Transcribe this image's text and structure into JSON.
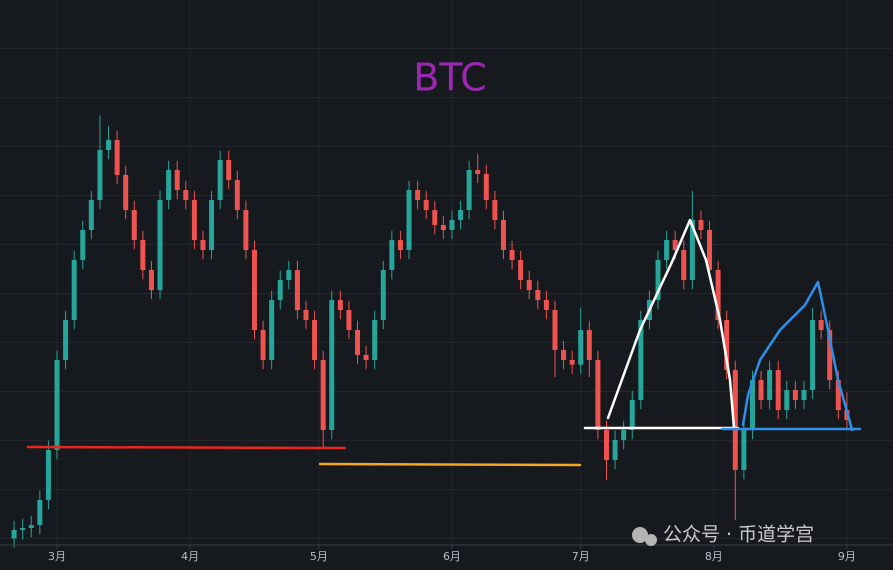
{
  "chart_data": {
    "type": "candlestick",
    "title": "BTC",
    "title_color": "#9c27b0",
    "watermark": "公众号 · 币道学宫",
    "up_color": "#26a69a",
    "down_color": "#ef5350",
    "grid": true,
    "xlim": [
      -13.28,
      194.74
    ],
    "ylim": [
      45575,
      81000
    ],
    "xticks": [
      {
        "value": 0,
        "label": "3月"
      },
      {
        "value": 31,
        "label": "4月"
      },
      {
        "value": 61,
        "label": "5月"
      },
      {
        "value": 92,
        "label": "6月"
      },
      {
        "value": 122,
        "label": "7月"
      },
      {
        "value": 153,
        "label": "8月"
      },
      {
        "value": 184,
        "label": "9月"
      }
    ],
    "x": [
      -10,
      -8,
      -6,
      -4,
      -2,
      0,
      2,
      4,
      6,
      8,
      10,
      12,
      14,
      16,
      18,
      20,
      22,
      24,
      26,
      28,
      30,
      32,
      34,
      36,
      38,
      40,
      42,
      44,
      46,
      48,
      50,
      52,
      54,
      56,
      58,
      60,
      62,
      64,
      66,
      68,
      70,
      72,
      74,
      76,
      78,
      80,
      82,
      84,
      86,
      88,
      90,
      92,
      94,
      96,
      98,
      100,
      102,
      104,
      106,
      108,
      110,
      112,
      114,
      116,
      118,
      120,
      122,
      124,
      126,
      128,
      130,
      132,
      134,
      136,
      138,
      140,
      142,
      144,
      146,
      148,
      150,
      152,
      154,
      156,
      158,
      160,
      162,
      164,
      166,
      168,
      170,
      172,
      174,
      176,
      178,
      180,
      182,
      184
    ],
    "candles": [
      [
        46000,
        47150,
        45400,
        46550
      ],
      [
        46550,
        47280,
        45950,
        46680
      ],
      [
        46680,
        47475,
        46080,
        46875
      ],
      [
        46875,
        49100,
        46275,
        48500
      ],
      [
        48500,
        52350,
        47900,
        51750
      ],
      [
        51750,
        58200,
        51150,
        57600
      ],
      [
        57600,
        60800,
        57000,
        60200
      ],
      [
        60200,
        64700,
        59600,
        64100
      ],
      [
        64100,
        66650,
        63500,
        66050
      ],
      [
        66050,
        68600,
        65450,
        68000
      ],
      [
        68000,
        73500,
        67400,
        71250
      ],
      [
        71250,
        72800,
        70650,
        71900
      ],
      [
        71900,
        72500,
        69025,
        69625
      ],
      [
        69625,
        70225,
        66750,
        67350
      ],
      [
        67350,
        67950,
        64800,
        65400
      ],
      [
        65400,
        66000,
        62850,
        63450
      ],
      [
        63450,
        64050,
        61550,
        62150
      ],
      [
        62150,
        68600,
        61550,
        68000
      ],
      [
        68000,
        70550,
        67400,
        69950
      ],
      [
        69950,
        70550,
        68050,
        68650
      ],
      [
        68650,
        69250,
        67400,
        68000
      ],
      [
        68000,
        68600,
        64800,
        65400
      ],
      [
        65400,
        66000,
        64150,
        64750
      ],
      [
        64750,
        68600,
        64150,
        68000
      ],
      [
        68000,
        71200,
        67400,
        70600
      ],
      [
        70600,
        71200,
        68700,
        69300
      ],
      [
        69300,
        69900,
        66750,
        67350
      ],
      [
        67350,
        67950,
        64150,
        64750
      ],
      [
        64750,
        65350,
        58950,
        59550
      ],
      [
        59550,
        60150,
        57000,
        57600
      ],
      [
        57600,
        62100,
        57000,
        61500
      ],
      [
        61500,
        63400,
        60900,
        62800
      ],
      [
        62800,
        64050,
        62200,
        63450
      ],
      [
        63450,
        64050,
        60250,
        60850
      ],
      [
        60850,
        61450,
        59600,
        60200
      ],
      [
        60200,
        60800,
        57000,
        57600
      ],
      [
        57600,
        58200,
        51900,
        53050
      ],
      [
        53050,
        62100,
        52450,
        61500
      ],
      [
        61500,
        62100,
        60250,
        60850
      ],
      [
        60850,
        61450,
        58950,
        59550
      ],
      [
        59550,
        60150,
        57325,
        57925
      ],
      [
        57925,
        58525,
        57000,
        57600
      ],
      [
        57600,
        60800,
        57000,
        60200
      ],
      [
        60200,
        64050,
        59600,
        63450
      ],
      [
        63450,
        66000,
        62850,
        65400
      ],
      [
        65400,
        66000,
        64150,
        64750
      ],
      [
        64750,
        69250,
        64150,
        68650
      ],
      [
        68650,
        69250,
        67400,
        68000
      ],
      [
        68000,
        68600,
        66750,
        67350
      ],
      [
        67350,
        67950,
        65775,
        66375
      ],
      [
        66375,
        66975,
        65450,
        66050
      ],
      [
        66050,
        67300,
        65450,
        66700
      ],
      [
        66700,
        67950,
        66100,
        67350
      ],
      [
        67350,
        70550,
        66750,
        69950
      ],
      [
        69950,
        71000,
        69100,
        69700
      ],
      [
        69700,
        70300,
        67400,
        68000
      ],
      [
        68000,
        68600,
        66100,
        66700
      ],
      [
        66700,
        67300,
        64150,
        64750
      ],
      [
        64750,
        65350,
        63500,
        64100
      ],
      [
        64100,
        64700,
        62200,
        62800
      ],
      [
        62800,
        63400,
        61550,
        62150
      ],
      [
        62150,
        62750,
        60900,
        61500
      ],
      [
        61500,
        62100,
        60250,
        60850
      ],
      [
        60850,
        61450,
        56500,
        58250
      ],
      [
        58250,
        58850,
        57000,
        57600
      ],
      [
        57600,
        58200,
        56700,
        57300
      ],
      [
        57300,
        61000,
        56700,
        59550
      ],
      [
        59550,
        60150,
        56500,
        57600
      ],
      [
        57600,
        58200,
        52450,
        53050
      ],
      [
        53050,
        53650,
        49800,
        51100
      ],
      [
        51100,
        53000,
        50500,
        52400
      ],
      [
        52400,
        53650,
        51800,
        53050
      ],
      [
        53050,
        55600,
        52450,
        55000
      ],
      [
        55000,
        60800,
        54400,
        60200
      ],
      [
        60200,
        62100,
        59600,
        61500
      ],
      [
        61500,
        64700,
        60900,
        64100
      ],
      [
        64100,
        66000,
        63500,
        65400
      ],
      [
        65400,
        66000,
        64150,
        64750
      ],
      [
        64750,
        65350,
        62200,
        62800
      ],
      [
        62800,
        68600,
        62200,
        66700
      ],
      [
        66700,
        67300,
        65450,
        66050
      ],
      [
        66050,
        66650,
        62850,
        63450
      ],
      [
        63450,
        64050,
        59600,
        60200
      ],
      [
        60200,
        60800,
        56350,
        56950
      ],
      [
        56950,
        57550,
        47200,
        50450
      ],
      [
        50450,
        53650,
        49850,
        53050
      ],
      [
        53050,
        56900,
        52450,
        56300
      ],
      [
        56300,
        56900,
        54400,
        55000
      ],
      [
        55000,
        57550,
        54400,
        56950
      ],
      [
        56950,
        57550,
        53750,
        54350
      ],
      [
        54350,
        56250,
        53750,
        55650
      ],
      [
        55650,
        56250,
        54400,
        55000
      ],
      [
        55000,
        56250,
        54400,
        55650
      ],
      [
        55650,
        61000,
        55050,
        60200
      ],
      [
        60200,
        60800,
        58950,
        59550
      ],
      [
        59550,
        60150,
        55700,
        56300
      ],
      [
        56300,
        56900,
        53750,
        54350
      ],
      [
        54350,
        55500,
        53100,
        53700
      ]
    ]
  }
}
